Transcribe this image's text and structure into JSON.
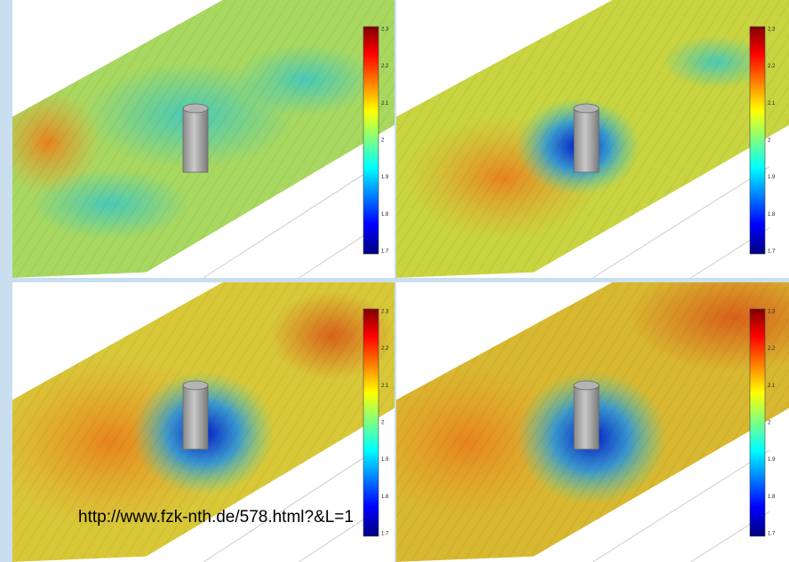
{
  "panels": [
    {
      "colorbar": {
        "ticks": [
          "2.3",
          "2.2",
          "2.1",
          "2",
          "1.9",
          "1.8",
          "1.7"
        ]
      }
    },
    {
      "colorbar": {
        "ticks": [
          "2.3",
          "2.2",
          "2.1",
          "2",
          "1.9",
          "1.8",
          "1.7"
        ]
      }
    },
    {
      "colorbar": {
        "ticks": [
          "2.3",
          "2.2",
          "2.1",
          "2",
          "1.9",
          "1.8",
          "1.7"
        ]
      }
    },
    {
      "colorbar": {
        "ticks": [
          "2.3",
          "2.2",
          "2.1",
          "2",
          "1.9",
          "1.8",
          "1.7"
        ]
      }
    }
  ],
  "caption": "http://www.fzk-nth.de/578.html?&L=1"
}
